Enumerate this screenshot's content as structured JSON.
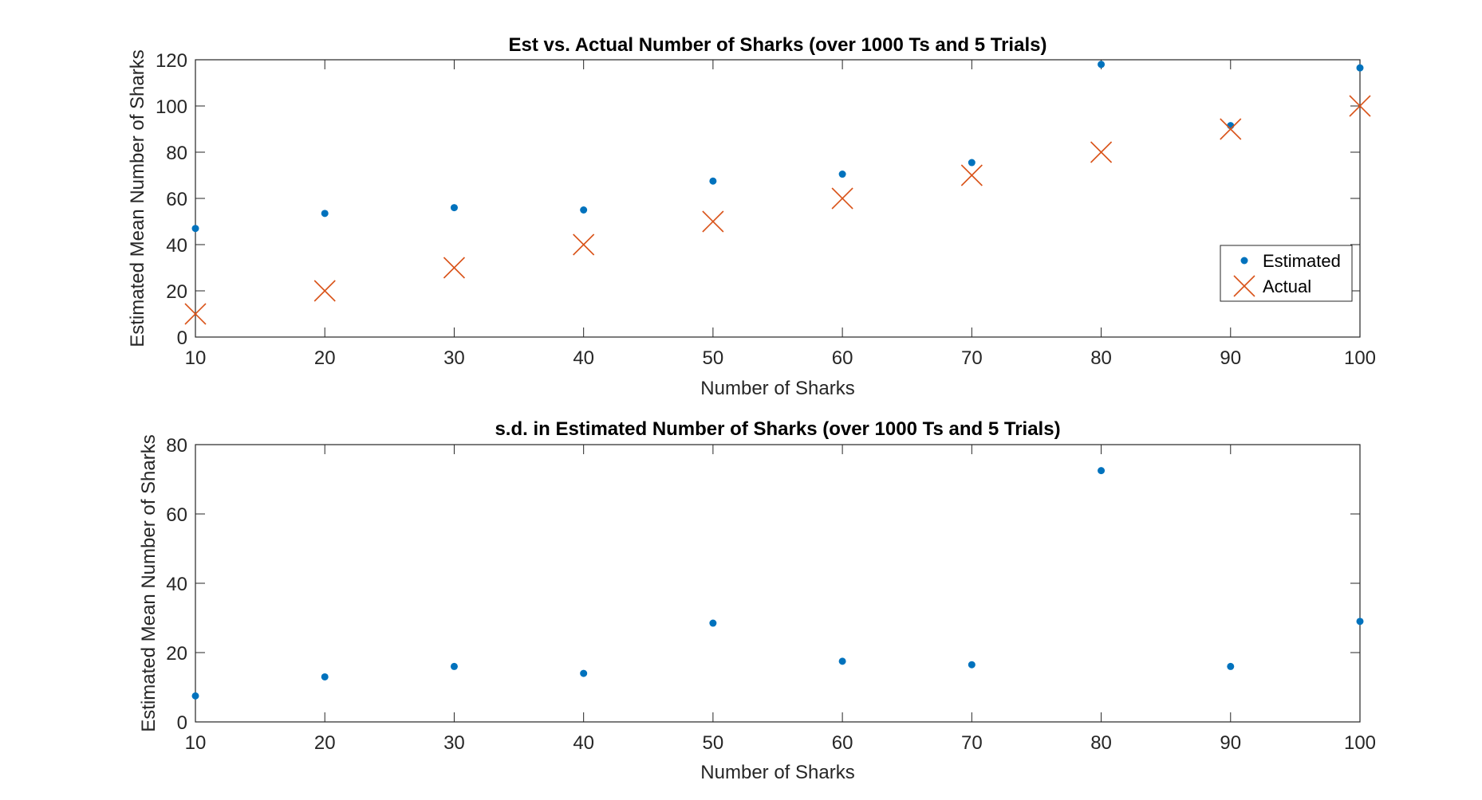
{
  "chart_data": [
    {
      "type": "scatter",
      "title": "Est vs. Actual Number of Sharks (over 1000 Ts and 5 Trials)",
      "xlabel": "Number of Sharks",
      "ylabel": "Estimated Mean Number of Sharks",
      "xlim": [
        10,
        100
      ],
      "ylim": [
        0,
        120
      ],
      "xticks": [
        "10",
        "20",
        "30",
        "40",
        "50",
        "60",
        "70",
        "80",
        "90",
        "100"
      ],
      "yticks": [
        "0",
        "20",
        "40",
        "60",
        "80",
        "100",
        "120"
      ],
      "grid": false,
      "legend_position": "lower-right",
      "series": [
        {
          "name": "Estimated",
          "marker": "dot",
          "color": "#0072BD",
          "x": [
            10,
            20,
            30,
            40,
            50,
            60,
            70,
            80,
            90,
            100
          ],
          "y": [
            47,
            53.5,
            56,
            55,
            67.5,
            70.5,
            75.5,
            118,
            91.5,
            116.5
          ]
        },
        {
          "name": "Actual",
          "marker": "x",
          "color": "#D95319",
          "x": [
            10,
            20,
            30,
            40,
            50,
            60,
            70,
            80,
            90,
            100
          ],
          "y": [
            10,
            20,
            30,
            40,
            50,
            60,
            70,
            80,
            90,
            100
          ]
        }
      ]
    },
    {
      "type": "scatter",
      "title": "s.d. in Estimated Number of Sharks (over 1000 Ts and 5 Trials)",
      "xlabel": "Number of Sharks",
      "ylabel": "Estimated Mean Number of Sharks",
      "xlim": [
        10,
        100
      ],
      "ylim": [
        0,
        80
      ],
      "xticks": [
        "10",
        "20",
        "30",
        "40",
        "50",
        "60",
        "70",
        "80",
        "90",
        "100"
      ],
      "yticks": [
        "0",
        "20",
        "40",
        "60",
        "80"
      ],
      "grid": false,
      "series": [
        {
          "marker": "dot",
          "color": "#0072BD",
          "x": [
            10,
            20,
            30,
            40,
            50,
            60,
            70,
            80,
            90,
            100
          ],
          "y": [
            7.5,
            13,
            16,
            14,
            28.5,
            17.5,
            16.5,
            72.5,
            16,
            29
          ]
        }
      ]
    }
  ]
}
